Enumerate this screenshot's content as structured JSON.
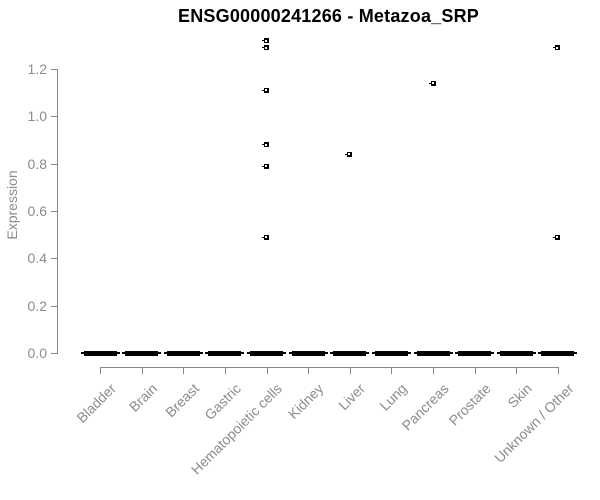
{
  "chart_data": {
    "type": "boxplot",
    "title": "ENSG00000241266 - Metazoa_SRP",
    "ylabel": "Expression",
    "xlabel": "",
    "ylim": [
      0.0,
      1.2
    ],
    "yticks": [
      0.0,
      0.2,
      0.4,
      0.6,
      0.8,
      1.0,
      1.2
    ],
    "ytick_labels": [
      "0.0",
      "0.2",
      "0.4",
      "0.6",
      "0.8",
      "1.0",
      "1.2"
    ],
    "grid": false,
    "legend_position": "none",
    "categories": [
      "Bladder",
      "Brain",
      "Breast",
      "Gastric",
      "Hematopoietic cells",
      "Kidney",
      "Liver",
      "Lung",
      "Pancreas",
      "Prostate",
      "Skin",
      "Unknown / Other"
    ],
    "series": [
      {
        "category": "Bladder",
        "median": 0,
        "q1": 0,
        "q3": 0,
        "whisker_low": 0,
        "whisker_high": 0,
        "outliers": []
      },
      {
        "category": "Brain",
        "median": 0,
        "q1": 0,
        "q3": 0,
        "whisker_low": 0,
        "whisker_high": 0,
        "outliers": []
      },
      {
        "category": "Breast",
        "median": 0,
        "q1": 0,
        "q3": 0,
        "whisker_low": 0,
        "whisker_high": 0,
        "outliers": []
      },
      {
        "category": "Gastric",
        "median": 0,
        "q1": 0,
        "q3": 0,
        "whisker_low": 0,
        "whisker_high": 0,
        "outliers": []
      },
      {
        "category": "Hematopoietic cells",
        "median": 0,
        "q1": 0,
        "q3": 0,
        "whisker_low": 0,
        "whisker_high": 0,
        "outliers": [
          1.32,
          1.29,
          1.11,
          0.88,
          0.79,
          0.49
        ]
      },
      {
        "category": "Kidney",
        "median": 0,
        "q1": 0,
        "q3": 0,
        "whisker_low": 0,
        "whisker_high": 0,
        "outliers": []
      },
      {
        "category": "Liver",
        "median": 0,
        "q1": 0,
        "q3": 0,
        "whisker_low": 0,
        "whisker_high": 0,
        "outliers": [
          0.84
        ]
      },
      {
        "category": "Lung",
        "median": 0,
        "q1": 0,
        "q3": 0,
        "whisker_low": 0,
        "whisker_high": 0,
        "outliers": []
      },
      {
        "category": "Pancreas",
        "median": 0,
        "q1": 0,
        "q3": 0,
        "whisker_low": 0,
        "whisker_high": 0,
        "outliers": [
          1.14
        ]
      },
      {
        "category": "Prostate",
        "median": 0,
        "q1": 0,
        "q3": 0,
        "whisker_low": 0,
        "whisker_high": 0,
        "outliers": []
      },
      {
        "category": "Skin",
        "median": 0,
        "q1": 0,
        "q3": 0,
        "whisker_low": 0,
        "whisker_high": 0,
        "outliers": []
      },
      {
        "category": "Unknown / Other",
        "median": 0,
        "q1": 0,
        "q3": 0,
        "whisker_low": 0,
        "whisker_high": 0,
        "outliers": [
          1.29,
          0.49
        ]
      }
    ],
    "colors": {
      "box": "#000000",
      "outlier": "#000000",
      "axis": "#888888",
      "axis_text": "#8c8c8c",
      "title_text": "#000000",
      "background": "#ffffff"
    }
  }
}
